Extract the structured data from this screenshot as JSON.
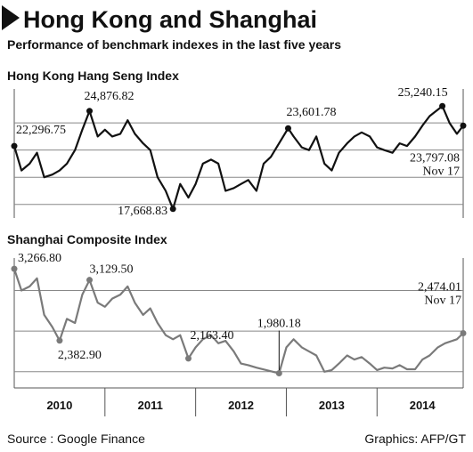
{
  "title": "Hong Kong and Shanghai",
  "subtitle": "Performance of benchmark indexes in the last five years",
  "source": "Source : Google Finance",
  "credit": "Graphics: AFP/GT",
  "chart_data": [
    {
      "type": "line",
      "title": "Hong Kong Hang Seng Index",
      "xlim": [
        2010.0,
        2014.95
      ],
      "ylim": [
        17000,
        26500
      ],
      "yticks": [
        18000,
        20000,
        22000,
        24000
      ],
      "grid": true,
      "annotations": [
        "Nov 17"
      ],
      "series": [
        {
          "name": "Hang Seng",
          "color": "#111111",
          "x": [
            2010.0,
            2010.08,
            2010.17,
            2010.25,
            2010.33,
            2010.42,
            2010.5,
            2010.58,
            2010.67,
            2010.75,
            2010.83,
            2010.92,
            2011.0,
            2011.08,
            2011.17,
            2011.25,
            2011.33,
            2011.42,
            2011.5,
            2011.58,
            2011.67,
            2011.75,
            2011.83,
            2011.92,
            2012.0,
            2012.08,
            2012.17,
            2012.25,
            2012.33,
            2012.42,
            2012.5,
            2012.58,
            2012.67,
            2012.75,
            2012.83,
            2012.92,
            2013.02,
            2013.08,
            2013.17,
            2013.25,
            2013.33,
            2013.42,
            2013.5,
            2013.58,
            2013.67,
            2013.75,
            2013.83,
            2013.92,
            2014.0,
            2014.08,
            2014.17,
            2014.25,
            2014.33,
            2014.42,
            2014.5,
            2014.58,
            2014.72,
            2014.8,
            2014.88,
            2014.95
          ],
          "values": [
            22296.75,
            20500,
            21000,
            21800,
            20000,
            20200,
            20500,
            21000,
            22000,
            23500,
            24876.82,
            23000,
            23500,
            23000,
            23200,
            24200,
            23200,
            22500,
            22000,
            20000,
            19000,
            17668.83,
            19500,
            18500,
            19500,
            21000,
            21300,
            21000,
            19000,
            19200,
            19500,
            19800,
            19000,
            21000,
            21500,
            22500,
            23601.78,
            23000,
            22200,
            22000,
            23000,
            21000,
            20500,
            21800,
            22500,
            23000,
            23300,
            23000,
            22200,
            22000,
            21800,
            22500,
            22300,
            23000,
            23800,
            24500,
            25240.15,
            24000,
            23200,
            23797.08
          ],
          "value_labels": [
            "22,296.75",
            null,
            null,
            null,
            null,
            null,
            null,
            null,
            null,
            null,
            "24,876.82",
            null,
            null,
            null,
            null,
            null,
            null,
            null,
            null,
            null,
            null,
            "17,668.83",
            null,
            null,
            null,
            null,
            null,
            null,
            null,
            null,
            null,
            null,
            null,
            null,
            null,
            null,
            "23,601.78",
            null,
            null,
            null,
            null,
            null,
            null,
            null,
            null,
            null,
            null,
            null,
            null,
            null,
            null,
            null,
            null,
            null,
            null,
            null,
            "25,240.15",
            null,
            null,
            "23,797.08"
          ]
        }
      ]
    },
    {
      "type": "line",
      "title": "Shanghai Composite Index",
      "xlim": [
        2010.0,
        2014.95
      ],
      "ylim": [
        1800,
        3400
      ],
      "yticks": [
        2000,
        2500,
        3000
      ],
      "grid": true,
      "annotations": [
        "Nov 17"
      ],
      "xticks": [
        {
          "value": 2010.5,
          "label": "2010"
        },
        {
          "value": 2011.5,
          "label": "2011"
        },
        {
          "value": 2012.5,
          "label": "2012"
        },
        {
          "value": 2013.5,
          "label": "2013"
        },
        {
          "value": 2014.5,
          "label": "2014"
        }
      ],
      "series": [
        {
          "name": "Shanghai Composite",
          "color": "#7a7a7a",
          "x": [
            2010.0,
            2010.08,
            2010.17,
            2010.25,
            2010.33,
            2010.42,
            2010.5,
            2010.58,
            2010.67,
            2010.75,
            2010.83,
            2010.92,
            2011.0,
            2011.08,
            2011.17,
            2011.25,
            2011.33,
            2011.42,
            2011.5,
            2011.58,
            2011.67,
            2011.75,
            2011.83,
            2011.92,
            2012.0,
            2012.08,
            2012.17,
            2012.25,
            2012.33,
            2012.42,
            2012.5,
            2012.58,
            2012.67,
            2012.92,
            2013.0,
            2013.08,
            2013.17,
            2013.25,
            2013.33,
            2013.42,
            2013.5,
            2013.58,
            2013.67,
            2013.75,
            2013.83,
            2013.92,
            2014.0,
            2014.08,
            2014.17,
            2014.25,
            2014.33,
            2014.42,
            2014.5,
            2014.58,
            2014.67,
            2014.75,
            2014.88,
            2014.95
          ],
          "values": [
            3266.8,
            3000,
            3050,
            3150,
            2700,
            2550,
            2382.9,
            2650,
            2600,
            2950,
            3129.5,
            2850,
            2800,
            2900,
            2950,
            3050,
            2850,
            2700,
            2780,
            2600,
            2450,
            2400,
            2450,
            2163.4,
            2300,
            2400,
            2450,
            2350,
            2380,
            2250,
            2100,
            2080,
            2050,
            1980.18,
            2300,
            2400,
            2300,
            2250,
            2200,
            2000,
            2020,
            2100,
            2200,
            2150,
            2180,
            2100,
            2020,
            2050,
            2040,
            2080,
            2030,
            2030,
            2150,
            2200,
            2300,
            2350,
            2400,
            2474.01
          ],
          "value_labels": [
            "3,266.80",
            null,
            null,
            null,
            null,
            null,
            "2,382.90",
            null,
            null,
            null,
            "3,129.50",
            null,
            null,
            null,
            null,
            null,
            null,
            null,
            null,
            null,
            null,
            null,
            null,
            "2,163.40",
            null,
            null,
            null,
            null,
            null,
            null,
            null,
            null,
            null,
            "1,980.18",
            null,
            null,
            null,
            null,
            null,
            null,
            null,
            null,
            null,
            null,
            null,
            null,
            null,
            null,
            null,
            null,
            null,
            null,
            null,
            null,
            null,
            null,
            null,
            "2,474.01"
          ]
        }
      ]
    }
  ]
}
